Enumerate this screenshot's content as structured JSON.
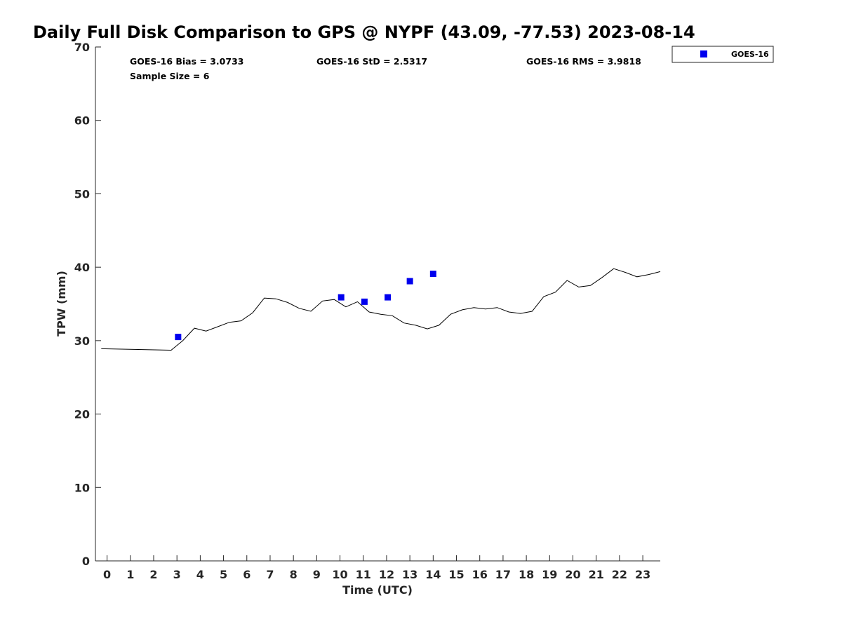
{
  "chart_data": {
    "type": "scatter",
    "title": "Daily Full Disk Comparison to GPS @ NYPF (43.09, -77.53) 2023-08-14",
    "xlabel": "Time (UTC)",
    "ylabel": "TPW (mm)",
    "xlim": [
      -0.5,
      23.75
    ],
    "ylim": [
      0,
      70
    ],
    "x_ticks": [
      0,
      1,
      2,
      3,
      4,
      5,
      6,
      7,
      8,
      9,
      10,
      11,
      12,
      13,
      14,
      15,
      16,
      17,
      18,
      19,
      20,
      21,
      22,
      23
    ],
    "y_ticks": [
      0,
      10,
      20,
      30,
      40,
      50,
      60,
      70
    ],
    "grid": false,
    "legend_position": "top-right, outside plot",
    "stats": {
      "bias": "GOES-16 Bias = 3.0733",
      "std": "GOES-16 StD = 2.5317",
      "rms": "GOES-16 RMS = 3.9818",
      "sample": "Sample Size = 6"
    },
    "series": [
      {
        "kind": "line",
        "color": "#000000",
        "x": [
          -0.25,
          2.75,
          3.25,
          3.75,
          4.25,
          4.75,
          5.25,
          5.75,
          6.25,
          6.75,
          7.25,
          7.75,
          8.25,
          8.75,
          9.25,
          9.75,
          10.25,
          10.75,
          11.25,
          11.75,
          12.25,
          12.75,
          13.25,
          13.75,
          14.25,
          14.75,
          15.25,
          15.75,
          16.25,
          16.75,
          17.25,
          17.75,
          18.25,
          18.75,
          19.25,
          19.75,
          20.25,
          20.75,
          21.25,
          21.75,
          22.25,
          22.75,
          23.25,
          23.75
        ],
        "values": [
          28.9,
          28.7,
          30.0,
          31.7,
          31.3,
          31.9,
          32.5,
          32.7,
          33.8,
          35.8,
          35.7,
          35.2,
          34.4,
          34.0,
          35.4,
          35.6,
          34.6,
          35.3,
          33.9,
          33.6,
          33.4,
          32.4,
          32.1,
          31.6,
          32.1,
          33.6,
          34.2,
          34.5,
          34.3,
          34.5,
          33.9,
          33.7,
          34.0,
          36.0,
          36.6,
          38.2,
          37.3,
          37.5,
          38.6,
          39.8,
          39.3,
          38.7,
          39.0,
          39.4
        ]
      },
      {
        "name": "GOES-16",
        "kind": "scatter",
        "marker": "square",
        "color": "#0000ee",
        "x": [
          3.05,
          10.05,
          11.05,
          12.05,
          13.0,
          14.0
        ],
        "values": [
          30.5,
          35.9,
          35.3,
          35.9,
          38.1,
          39.1
        ]
      }
    ]
  }
}
